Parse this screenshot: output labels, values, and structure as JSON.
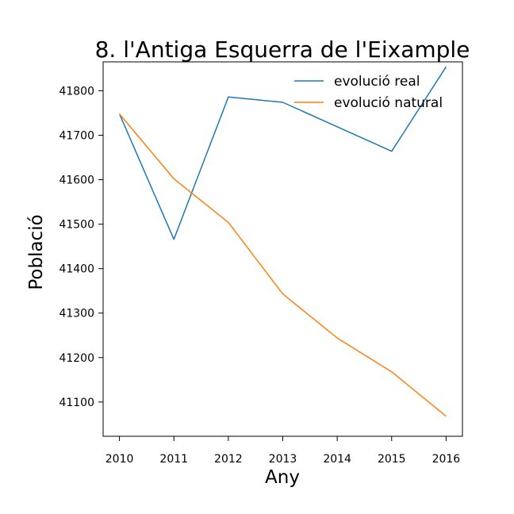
{
  "chart_data": {
    "type": "line",
    "title": "8. l'Antiga Esquerra de l'Eixample",
    "xlabel": "Any",
    "ylabel": "Població",
    "x": [
      2010,
      2011,
      2012,
      2013,
      2014,
      2015,
      2016
    ],
    "xlim": [
      2009.7,
      2016.3
    ],
    "ylim": [
      41023,
      41865
    ],
    "yticks": [
      41100,
      41200,
      41300,
      41400,
      41500,
      41600,
      41700,
      41800
    ],
    "grid": false,
    "legend_position": "top-right",
    "series": [
      {
        "name": "evolució real",
        "color": "#1f77b4",
        "values": [
          41748,
          41466,
          41786,
          41774,
          41719,
          41664,
          41854
        ]
      },
      {
        "name": "evolució natural",
        "color": "#ff7f0e",
        "values": [
          41748,
          41602,
          41504,
          41343,
          41244,
          41168,
          41068
        ]
      }
    ]
  }
}
